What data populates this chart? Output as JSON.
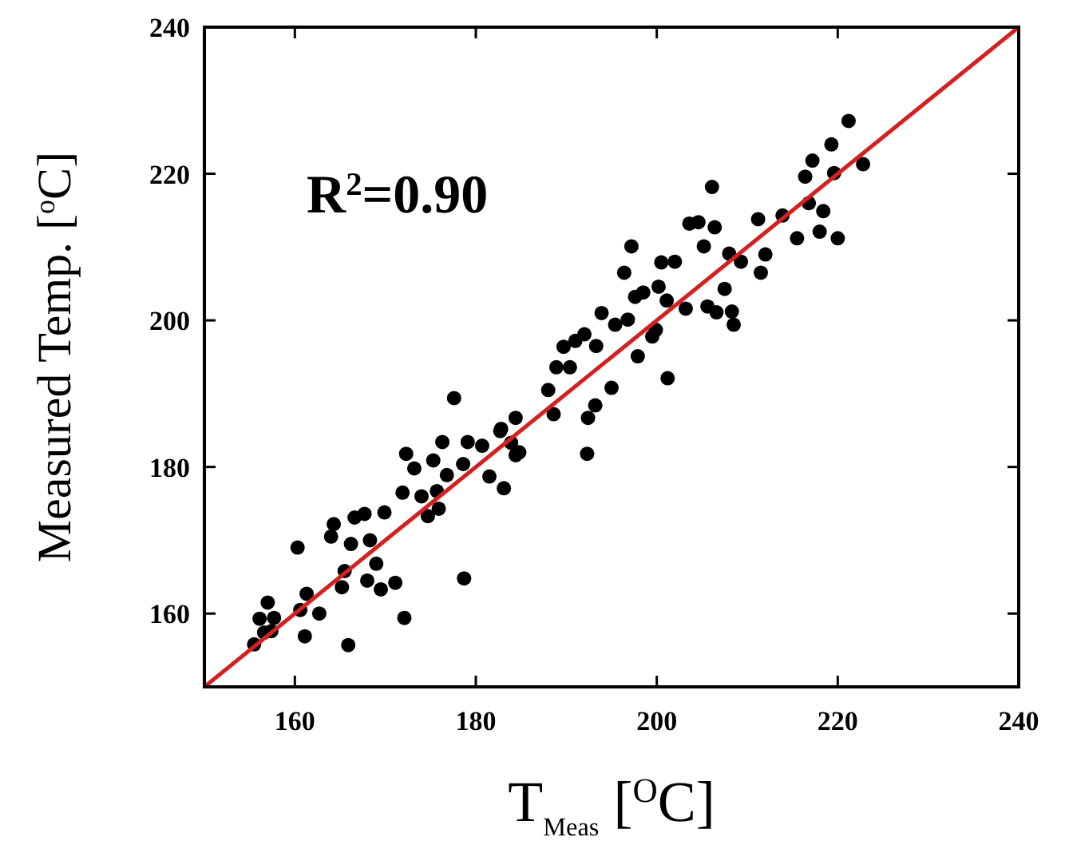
{
  "chart_data": {
    "type": "scatter",
    "xlabel": "T$_{Meas}$ [$^{O}$C]",
    "ylabel": "Measured Temp. [$^{o}$C]",
    "annotations": [
      "R$^{2}$=0.90"
    ],
    "xlim": [
      150,
      240
    ],
    "ylim": [
      150,
      240
    ],
    "xticks": [
      160,
      180,
      200,
      220,
      240
    ],
    "yticks": [
      160,
      180,
      200,
      220,
      240
    ],
    "grid": false,
    "series": [
      {
        "color": "#000000",
        "marker": "circle",
        "x": [
          155.5,
          156.1,
          157.0,
          157.7,
          156.6,
          157.4,
          160.6,
          161.3,
          162.7,
          161.1,
          165.9,
          160.3,
          164.0,
          164.3,
          166.2,
          166.6,
          167.7,
          168.3,
          165.5,
          165.2,
          169.0,
          168.0,
          169.5,
          171.1,
          172.1,
          169.9,
          171.9,
          172.3,
          173.2,
          174.0,
          174.7,
          175.9,
          175.7,
          176.8,
          175.3,
          176.3,
          178.6,
          179.1,
          180.7,
          178.7,
          181.5,
          183.1,
          182.7,
          184.4,
          177.6,
          182.8,
          184.4,
          183.9,
          184.8,
          192.3,
          188.0,
          188.6,
          192.4,
          193.2,
          195.0,
          188.9,
          190.4,
          189.7,
          191.0,
          192.0,
          193.3,
          193.9,
          195.4,
          196.8,
          197.9,
          199.5,
          200.2,
          198.5,
          196.4,
          201.2,
          221.2,
          219.3,
          217.2,
          216.4,
          219.6,
          222.8,
          216.8,
          218.4,
          213.9,
          211.2,
          218.0,
          220.0,
          215.5,
          212.0,
          211.5,
          209.3,
          208.0,
          206.1,
          203.6,
          204.6,
          206.4,
          205.2,
          207.5,
          205.6,
          206.6,
          208.3,
          208.5,
          203.2,
          201.1,
          202.0,
          200.5,
          197.2,
          197.6,
          199.9
        ],
        "values": [
          155.8,
          159.3,
          161.5,
          159.4,
          157.4,
          157.6,
          160.5,
          162.7,
          160.0,
          156.9,
          155.7,
          169.0,
          170.5,
          172.2,
          169.5,
          173.1,
          173.6,
          170.0,
          165.8,
          163.6,
          166.8,
          164.5,
          163.3,
          164.2,
          159.4,
          173.8,
          176.5,
          181.8,
          179.8,
          176.0,
          173.3,
          174.3,
          176.7,
          178.9,
          180.9,
          183.4,
          180.4,
          183.4,
          182.9,
          164.8,
          178.7,
          177.1,
          184.9,
          181.6,
          189.4,
          185.2,
          186.7,
          183.3,
          182.0,
          181.8,
          190.5,
          187.2,
          186.7,
          188.4,
          190.8,
          193.6,
          193.6,
          196.4,
          197.2,
          198.1,
          196.5,
          201.0,
          199.4,
          200.1,
          195.1,
          197.8,
          204.6,
          203.8,
          206.5,
          192.1,
          227.2,
          224.0,
          221.8,
          219.6,
          220.1,
          221.3,
          216.0,
          214.9,
          214.3,
          213.8,
          212.1,
          211.2,
          211.2,
          209.0,
          206.5,
          208.0,
          209.1,
          218.2,
          213.2,
          213.4,
          212.7,
          210.1,
          204.3,
          201.9,
          201.1,
          201.2,
          199.4,
          201.6,
          202.7,
          208.0,
          207.9,
          210.1,
          203.2,
          198.7
        ]
      },
      {
        "type": "line",
        "color": "#d42020",
        "x": [
          150,
          240
        ],
        "values": [
          150,
          240
        ],
        "marker": "none"
      }
    ]
  }
}
